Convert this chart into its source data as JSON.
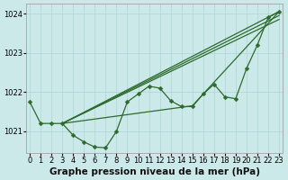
{
  "xlabel": "Graphe pression niveau de la mer (hPa)",
  "xlim": [
    -0.3,
    23.3
  ],
  "ylim": [
    1020.45,
    1024.25
  ],
  "yticks": [
    1021,
    1022,
    1023,
    1024
  ],
  "xticks": [
    0,
    1,
    2,
    3,
    4,
    5,
    6,
    7,
    8,
    9,
    10,
    11,
    12,
    13,
    14,
    15,
    16,
    17,
    18,
    19,
    20,
    21,
    22,
    23
  ],
  "bg_color": "#cce9e9",
  "grid_color": "#aad4d4",
  "line_color": "#2d6a2d",
  "tick_fontsize": 6.0,
  "label_fontsize": 7.5,
  "label_fontweight": "bold",
  "wiggly_line": [
    1021.75,
    1021.2,
    1021.2,
    1021.2,
    1020.9,
    1020.73,
    1020.6,
    1020.58,
    1021.0,
    1021.75,
    1021.95,
    1022.15,
    1022.1,
    1021.78,
    1021.63,
    1021.63,
    1021.95,
    1022.2,
    1021.88,
    1021.83,
    1022.6,
    1023.2,
    1023.9,
    1024.05
  ],
  "straight_lines": [
    {
      "x": [
        3,
        23
      ],
      "y": [
        1021.2,
        1024.05
      ]
    },
    {
      "x": [
        3,
        23
      ],
      "y": [
        1021.2,
        1024.05
      ]
    },
    {
      "x": [
        3,
        16,
        23
      ],
      "y": [
        1021.2,
        1022.6,
        1024.05
      ]
    },
    {
      "x": [
        3,
        12,
        15,
        20,
        23
      ],
      "y": [
        1021.2,
        1022.05,
        1021.62,
        1022.6,
        1024.05
      ]
    }
  ],
  "marker": "D",
  "marker_size": 2.5,
  "line_width": 0.9
}
